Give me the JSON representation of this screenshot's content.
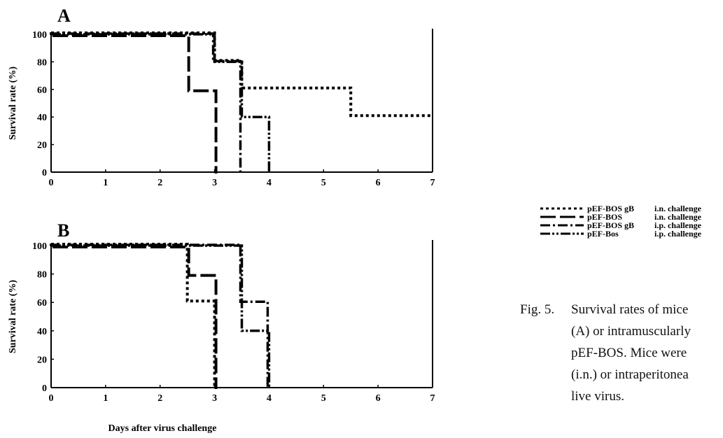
{
  "figure": {
    "x_axis_label": "Days after virus challenge",
    "caption_label": "Fig. 5.",
    "caption_lines": [
      "Survival rates of mice",
      "(A) or intramuscularly",
      "pEF-BOS. Mice were",
      "(i.n.) or intraperitonea",
      "live virus."
    ]
  },
  "legend": [
    {
      "series": "pEF-BOS gB",
      "route": "i.n. challenge",
      "style": "dotted"
    },
    {
      "series": "pEF-BOS",
      "route": "i.n. challenge",
      "style": "long-dash"
    },
    {
      "series": "pEF-BOS gB",
      "route": "i.p. challenge",
      "style": "dash-dot"
    },
    {
      "series": "pEF-Bos",
      "route": "i.p. challenge",
      "style": "dash-dot-dot"
    }
  ],
  "chart_data": [
    {
      "type": "line",
      "panel": "A",
      "ylabel": "Survival rate (%)",
      "xlabel": "",
      "xlim": [
        0,
        7
      ],
      "ylim": [
        0,
        100
      ],
      "x_ticks": [
        0,
        1,
        2,
        3,
        4,
        5,
        6,
        7
      ],
      "y_ticks": [
        0,
        20,
        40,
        60,
        80,
        100
      ],
      "step": true,
      "series": [
        {
          "name": "pEF-BOS gB i.n. challenge",
          "style": "dotted",
          "x": [
            0,
            3,
            3,
            3.5,
            3.5,
            5.5,
            5.5,
            7
          ],
          "y": [
            100,
            100,
            80,
            80,
            60,
            60,
            40,
            40
          ]
        },
        {
          "name": "pEF-BOS i.n. challenge",
          "style": "long-dash",
          "x": [
            0,
            2.5,
            2.5,
            3,
            3
          ],
          "y": [
            100,
            100,
            60,
            60,
            0
          ]
        },
        {
          "name": "pEF-BOS gB i.p. challenge",
          "style": "dash-dot",
          "x": [
            0,
            3,
            3,
            3.5,
            3.5
          ],
          "y": [
            100,
            100,
            80,
            80,
            0
          ]
        },
        {
          "name": "pEF-Bos i.p. challenge",
          "style": "dash-dot-dot",
          "x": [
            0,
            3,
            3,
            3.5,
            3.5,
            4,
            4
          ],
          "y": [
            100,
            100,
            80,
            80,
            40,
            40,
            0
          ]
        }
      ]
    },
    {
      "type": "line",
      "panel": "B",
      "ylabel": "Survival rate (%)",
      "xlabel": "Days after virus challenge",
      "xlim": [
        0,
        7
      ],
      "ylim": [
        0,
        100
      ],
      "x_ticks": [
        0,
        1,
        2,
        3,
        4,
        5,
        6,
        7
      ],
      "y_ticks": [
        0,
        20,
        40,
        60,
        80,
        100
      ],
      "step": true,
      "series": [
        {
          "name": "pEF-BOS gB i.n. challenge",
          "style": "dotted",
          "x": [
            0,
            2.5,
            2.5,
            3,
            3
          ],
          "y": [
            100,
            100,
            60,
            60,
            0
          ]
        },
        {
          "name": "pEF-BOS i.n. challenge",
          "style": "long-dash",
          "x": [
            0,
            2.5,
            2.5,
            3,
            3
          ],
          "y": [
            100,
            100,
            80,
            80,
            0
          ]
        },
        {
          "name": "pEF-BOS gB i.p. challenge",
          "style": "dash-dot",
          "x": [
            0,
            3.5,
            3.5,
            4,
            4
          ],
          "y": [
            100,
            100,
            60,
            60,
            0
          ]
        },
        {
          "name": "pEF-Bos i.p. challenge",
          "style": "dash-dot-dot",
          "x": [
            0,
            3.5,
            3.5,
            4,
            4
          ],
          "y": [
            100,
            100,
            40,
            40,
            0
          ]
        }
      ]
    }
  ]
}
